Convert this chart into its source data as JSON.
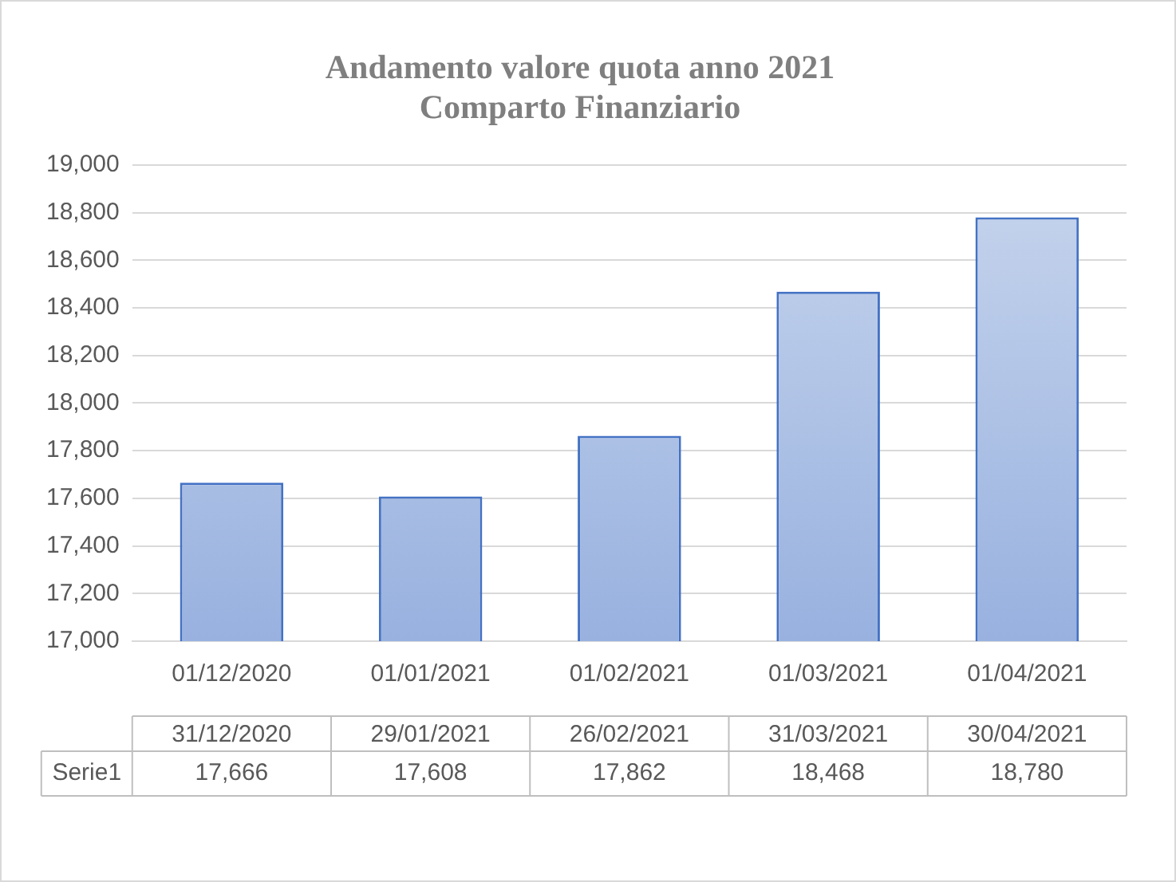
{
  "chart_data": {
    "type": "bar",
    "title": "Andamento valore quota anno 2021",
    "subtitle": "Comparto Finanziario",
    "categories": [
      "01/12/2020",
      "01/01/2021",
      "01/02/2021",
      "01/03/2021",
      "01/04/2021"
    ],
    "series": [
      {
        "name": "Serie1",
        "color": "#4472c4",
        "values": [
          17666,
          17608,
          17862,
          18468,
          18780
        ],
        "value_labels": [
          "17,666",
          "17,608",
          "17,862",
          "18,468",
          "18,780"
        ]
      }
    ],
    "annotations": [
      "31/12/2020",
      "29/01/2021",
      "26/02/2021",
      "31/03/2021",
      "30/04/2021"
    ],
    "ylim": [
      17000,
      19000
    ],
    "yticks": [
      {
        "value": 17000,
        "label": "17,000"
      },
      {
        "value": 17200,
        "label": "17,200"
      },
      {
        "value": 17400,
        "label": "17,400"
      },
      {
        "value": 17600,
        "label": "17,600"
      },
      {
        "value": 17800,
        "label": "17,800"
      },
      {
        "value": 18000,
        "label": "18,000"
      },
      {
        "value": 18200,
        "label": "18,200"
      },
      {
        "value": 18400,
        "label": "18,400"
      },
      {
        "value": 18600,
        "label": "18,600"
      },
      {
        "value": 18800,
        "label": "18,800"
      },
      {
        "value": 19000,
        "label": "19,000"
      }
    ],
    "grid": "y",
    "legend": "bottom"
  }
}
